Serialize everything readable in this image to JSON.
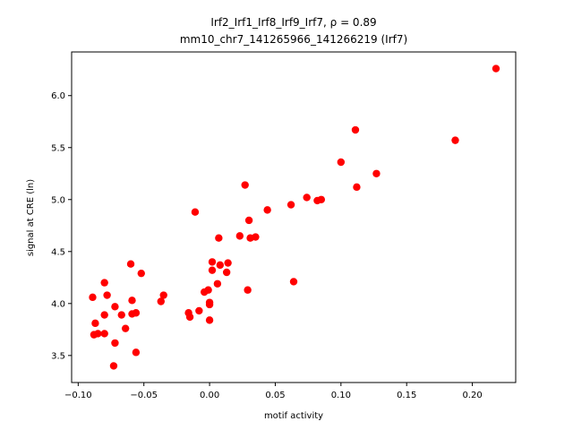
{
  "chart_data": {
    "type": "scatter",
    "title_line1": "Irf2_Irf1_Irf8_Irf9_Irf7, ρ = 0.89",
    "title_line2": "mm10_chr7_141265966_141266219 (Irf7)",
    "xlabel": "motif activity",
    "ylabel": "signal at CRE (ln)",
    "xlim": [
      -0.105,
      0.233
    ],
    "ylim": [
      3.24,
      6.42
    ],
    "xticks": [
      -0.1,
      -0.05,
      0.0,
      0.05,
      0.1,
      0.15,
      0.2
    ],
    "xtick_labels": [
      "−0.10",
      "−0.05",
      "0.00",
      "0.05",
      "0.10",
      "0.15",
      "0.20"
    ],
    "yticks": [
      3.5,
      4.0,
      4.5,
      5.0,
      5.5,
      6.0
    ],
    "ytick_labels": [
      "3.5",
      "4.0",
      "4.5",
      "5.0",
      "5.5",
      "6.0"
    ],
    "grid": false,
    "marker_color": "#ff0000",
    "points": [
      {
        "x": 0.218,
        "y": 6.26
      },
      {
        "x": 0.111,
        "y": 5.67
      },
      {
        "x": 0.187,
        "y": 5.57
      },
      {
        "x": 0.1,
        "y": 5.36
      },
      {
        "x": 0.127,
        "y": 5.25
      },
      {
        "x": 0.027,
        "y": 5.14
      },
      {
        "x": 0.112,
        "y": 5.12
      },
      {
        "x": 0.074,
        "y": 5.02
      },
      {
        "x": 0.082,
        "y": 4.99
      },
      {
        "x": 0.085,
        "y": 5.0
      },
      {
        "x": 0.062,
        "y": 4.95
      },
      {
        "x": 0.044,
        "y": 4.9
      },
      {
        "x": -0.011,
        "y": 4.88
      },
      {
        "x": 0.03,
        "y": 4.8
      },
      {
        "x": 0.023,
        "y": 4.65
      },
      {
        "x": 0.007,
        "y": 4.63
      },
      {
        "x": 0.031,
        "y": 4.63
      },
      {
        "x": 0.035,
        "y": 4.64
      },
      {
        "x": 0.002,
        "y": 4.4
      },
      {
        "x": 0.014,
        "y": 4.39
      },
      {
        "x": 0.008,
        "y": 4.37
      },
      {
        "x": -0.06,
        "y": 4.38
      },
      {
        "x": 0.002,
        "y": 4.32
      },
      {
        "x": 0.013,
        "y": 4.3
      },
      {
        "x": -0.052,
        "y": 4.29
      },
      {
        "x": 0.064,
        "y": 4.21
      },
      {
        "x": -0.08,
        "y": 4.2
      },
      {
        "x": 0.006,
        "y": 4.19
      },
      {
        "x": 0.029,
        "y": 4.13
      },
      {
        "x": -0.001,
        "y": 4.13
      },
      {
        "x": -0.004,
        "y": 4.11
      },
      {
        "x": -0.078,
        "y": 4.08
      },
      {
        "x": -0.035,
        "y": 4.08
      },
      {
        "x": -0.089,
        "y": 4.06
      },
      {
        "x": -0.059,
        "y": 4.03
      },
      {
        "x": -0.037,
        "y": 4.02
      },
      {
        "x": 0.0,
        "y": 4.01
      },
      {
        "x": 0.0,
        "y": 3.99
      },
      {
        "x": -0.072,
        "y": 3.97
      },
      {
        "x": -0.008,
        "y": 3.93
      },
      {
        "x": -0.016,
        "y": 3.91
      },
      {
        "x": -0.056,
        "y": 3.91
      },
      {
        "x": -0.059,
        "y": 3.9
      },
      {
        "x": -0.067,
        "y": 3.89
      },
      {
        "x": -0.08,
        "y": 3.89
      },
      {
        "x": -0.015,
        "y": 3.87
      },
      {
        "x": 0.0,
        "y": 3.84
      },
      {
        "x": -0.087,
        "y": 3.81
      },
      {
        "x": -0.064,
        "y": 3.76
      },
      {
        "x": -0.085,
        "y": 3.71
      },
      {
        "x": -0.088,
        "y": 3.7
      },
      {
        "x": -0.08,
        "y": 3.71
      },
      {
        "x": -0.072,
        "y": 3.62
      },
      {
        "x": -0.056,
        "y": 3.53
      },
      {
        "x": -0.073,
        "y": 3.4
      }
    ]
  }
}
